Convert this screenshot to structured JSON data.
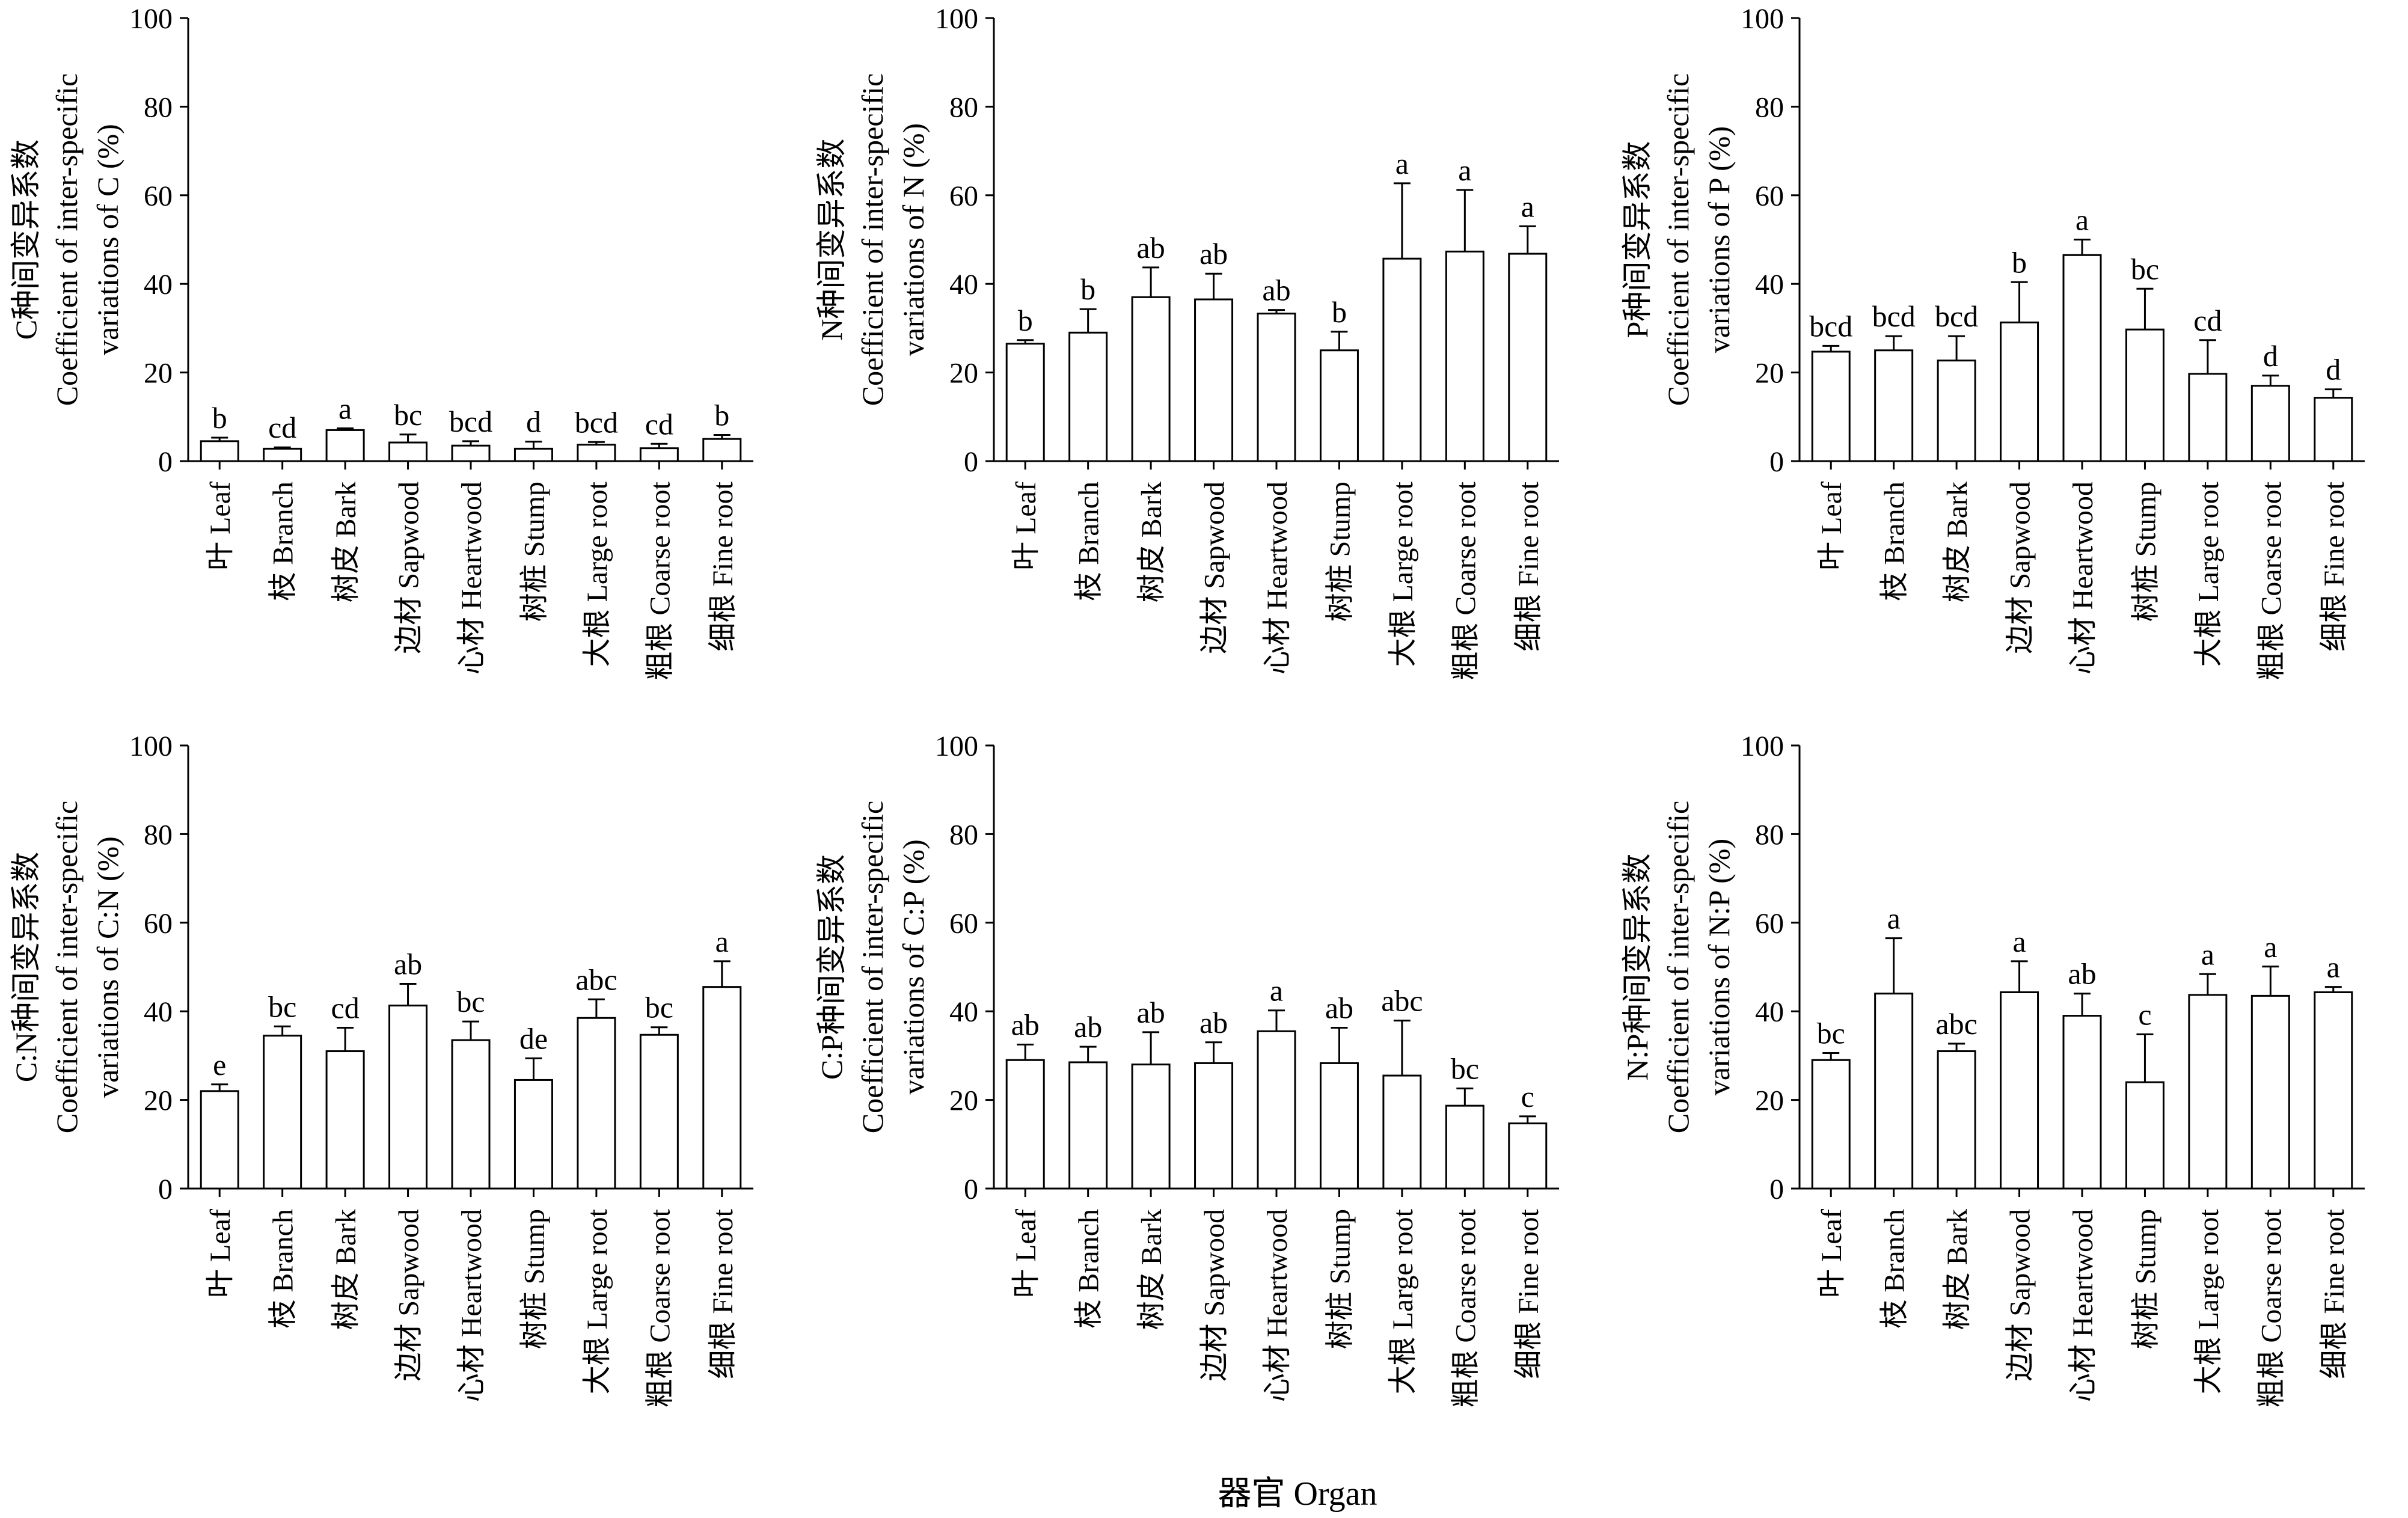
{
  "figure": {
    "common_xlabel": "器官  Organ"
  },
  "chart_data": [
    {
      "type": "bar",
      "ylabel_lines": [
        "C种间变异系数",
        "Coefficient of inter-specific",
        "variations of C (%)"
      ],
      "ylim": [
        0,
        100
      ],
      "yticks": [
        0,
        20,
        40,
        60,
        80,
        100
      ],
      "categories": [
        "叶  Leaf",
        "枝  Branch",
        "树皮  Bark",
        "边材  Sapwood",
        "心材  Heartwood",
        "树桩  Stump",
        "大根  Large root",
        "粗根  Coarse root",
        "细根  Fine root"
      ],
      "values": [
        4.5,
        2.8,
        7.0,
        4.2,
        3.5,
        2.8,
        3.7,
        2.9,
        5.0
      ],
      "errors": [
        0.8,
        0.3,
        0.4,
        1.8,
        1.0,
        1.6,
        0.6,
        1.0,
        0.9
      ],
      "letters": [
        "b",
        "cd",
        "a",
        "bc",
        "bcd",
        "d",
        "bcd",
        "cd",
        "b"
      ]
    },
    {
      "type": "bar",
      "ylabel_lines": [
        "N种间变异系数",
        "Coefficient of inter-specific",
        "variations of N (%)"
      ],
      "ylim": [
        0,
        100
      ],
      "yticks": [
        0,
        20,
        40,
        60,
        80,
        100
      ],
      "categories": [
        "叶  Leaf",
        "枝  Branch",
        "树皮  Bark",
        "边材  Sapwood",
        "心材  Heartwood",
        "树桩  Stump",
        "大根  Large root",
        "粗根  Coarse root",
        "细根  Fine root"
      ],
      "values": [
        26.5,
        29.0,
        37.0,
        36.5,
        33.3,
        25.0,
        45.7,
        47.3,
        46.8
      ],
      "errors": [
        0.8,
        5.3,
        6.7,
        5.8,
        0.8,
        4.2,
        17.0,
        13.9,
        6.2
      ],
      "letters": [
        "b",
        "b",
        "ab",
        "ab",
        "ab",
        "b",
        "a",
        "a",
        "a"
      ]
    },
    {
      "type": "bar",
      "ylabel_lines": [
        "P种间变异系数",
        "Coefficient of inter-specific",
        "variations of P (%)"
      ],
      "ylim": [
        0,
        100
      ],
      "yticks": [
        0,
        20,
        40,
        60,
        80,
        100
      ],
      "categories": [
        "叶  Leaf",
        "枝  Branch",
        "树皮  Bark",
        "边材  Sapwood",
        "心材  Heartwood",
        "树桩  Stump",
        "大根  Large root",
        "粗根  Coarse root",
        "细根  Fine root"
      ],
      "values": [
        24.7,
        25.0,
        22.7,
        31.3,
        46.5,
        29.7,
        19.7,
        17.0,
        14.3
      ],
      "errors": [
        1.3,
        3.2,
        5.5,
        9.1,
        3.5,
        9.2,
        7.6,
        2.3,
        1.9
      ],
      "letters": [
        "bcd",
        "bcd",
        "bcd",
        "b",
        "a",
        "bc",
        "cd",
        "d",
        "d"
      ]
    },
    {
      "type": "bar",
      "ylabel_lines": [
        "C:N种间变异系数",
        "Coefficient of inter-specific",
        "variations of C:N (%)"
      ],
      "ylim": [
        0,
        100
      ],
      "yticks": [
        0,
        20,
        40,
        60,
        80,
        100
      ],
      "categories": [
        "叶  Leaf",
        "枝  Branch",
        "树皮  Bark",
        "边材  Sapwood",
        "心材  Heartwood",
        "树桩  Stump",
        "大根  Large root",
        "粗根  Coarse root",
        "细根  Fine root"
      ],
      "values": [
        22.0,
        34.5,
        31.0,
        41.3,
        33.5,
        24.5,
        38.5,
        34.7,
        45.5
      ],
      "errors": [
        1.5,
        2.1,
        5.3,
        4.9,
        4.2,
        4.9,
        4.2,
        1.7,
        5.8
      ],
      "letters": [
        "e",
        "bc",
        "cd",
        "ab",
        "bc",
        "de",
        "abc",
        "bc",
        "a"
      ]
    },
    {
      "type": "bar",
      "ylabel_lines": [
        "C:P种间变异系数",
        "Coefficient of inter-specific",
        "variations of C:P (%)"
      ],
      "ylim": [
        0,
        100
      ],
      "yticks": [
        0,
        20,
        40,
        60,
        80,
        100
      ],
      "categories": [
        "叶  Leaf",
        "枝  Branch",
        "树皮  Bark",
        "边材  Sapwood",
        "心材  Heartwood",
        "树桩  Stump",
        "大根  Large root",
        "粗根  Coarse root",
        "细根  Fine root"
      ],
      "values": [
        29.0,
        28.5,
        28.0,
        28.3,
        35.5,
        28.3,
        25.5,
        18.7,
        14.7
      ],
      "errors": [
        3.5,
        3.5,
        7.3,
        4.7,
        4.7,
        8.0,
        12.4,
        3.9,
        1.6
      ],
      "letters": [
        "ab",
        "ab",
        "ab",
        "ab",
        "a",
        "ab",
        "abc",
        "bc",
        "c"
      ]
    },
    {
      "type": "bar",
      "ylabel_lines": [
        "N:P种间变异系数",
        "Coefficient of inter-specific",
        "variations of N:P (%)"
      ],
      "ylim": [
        0,
        100
      ],
      "yticks": [
        0,
        20,
        40,
        60,
        80,
        100
      ],
      "categories": [
        "叶  Leaf",
        "枝  Branch",
        "树皮  Bark",
        "边材  Sapwood",
        "心材  Heartwood",
        "树桩  Stump",
        "大根  Large root",
        "粗根  Coarse root",
        "细根  Fine root"
      ],
      "values": [
        29.0,
        44.0,
        31.0,
        44.3,
        39.0,
        24.0,
        43.7,
        43.5,
        44.3
      ],
      "errors": [
        1.6,
        12.5,
        1.7,
        7.0,
        5.0,
        10.8,
        4.7,
        6.6,
        1.2
      ],
      "letters": [
        "bc",
        "a",
        "abc",
        "a",
        "ab",
        "c",
        "a",
        "a",
        "a"
      ]
    }
  ]
}
